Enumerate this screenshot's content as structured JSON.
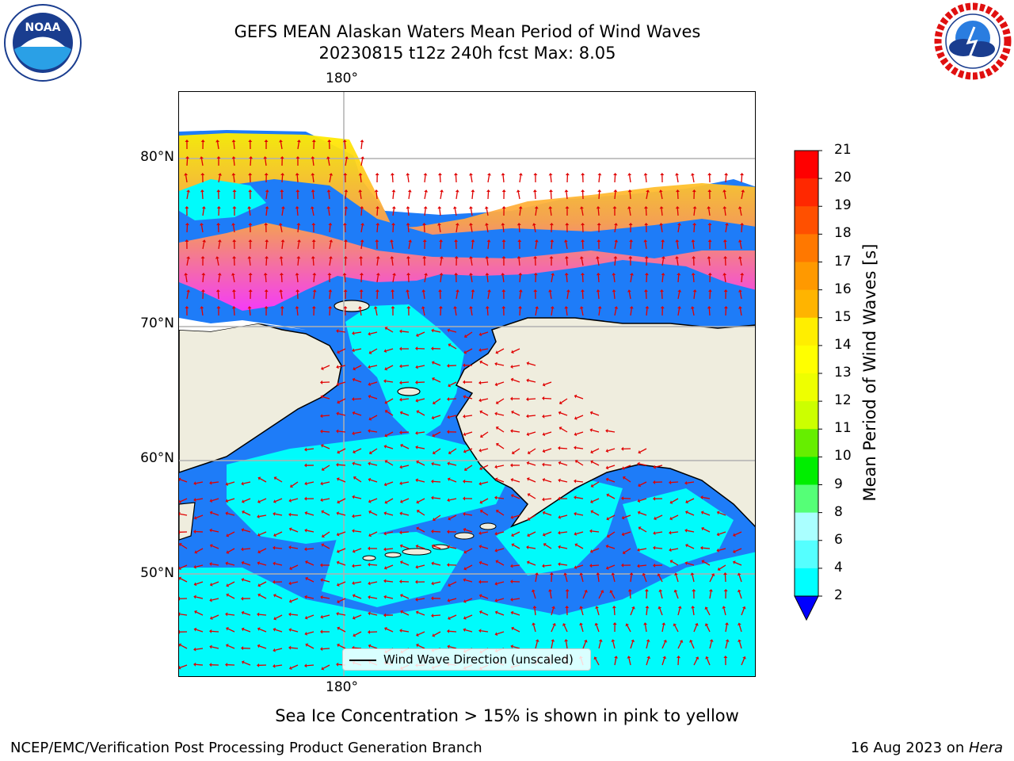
{
  "title": {
    "line1": "GEFS MEAN Alaskan Waters Mean Period of Wind Waves",
    "line2": "20230815 t12z 240h fcst   Max: 8.05"
  },
  "logos": {
    "left": {
      "text": "NOAA",
      "ring_text": "NATIONAL OCEANIC AND ATMOSPHERIC ADMINISTRATION · U.S. DEPARTMENT OF COMMERCE"
    },
    "right": {
      "ring_text": "NATIONAL WEATHER SERVICE"
    }
  },
  "map": {
    "lon_labels": [
      "180°",
      "180°"
    ],
    "lat_labels": [
      "80°N",
      "70°N",
      "60°N",
      "50°N"
    ],
    "colors": {
      "ocean_base": "#1e7cf8",
      "cyan": "#00fbfb",
      "land": "#efedde",
      "ice_pink": "#ff38f8",
      "ice_orange": "#ffa24a",
      "ice_yellow": "#ffee00",
      "arrow": "#e00000",
      "grid": "#b0b0b0"
    }
  },
  "legend": {
    "label": "Wind Wave Direction (unscaled)"
  },
  "colorbar": {
    "label": "Mean Period of Wind Waves [s]",
    "ticks": [
      "21",
      "20",
      "19",
      "18",
      "17",
      "16",
      "15",
      "14",
      "13",
      "12",
      "11",
      "10",
      "9",
      "8",
      "6",
      "4",
      "2"
    ],
    "colors": [
      "#ff0000",
      "#ff2800",
      "#ff5000",
      "#ff7800",
      "#ff9900",
      "#ffb400",
      "#ffee00",
      "#ffff00",
      "#eeff00",
      "#ccff00",
      "#66ee00",
      "#00ee00",
      "#55ff77",
      "#aaffff",
      "#55ffff",
      "#00ffff",
      "#1e7cf8"
    ],
    "extend_color": "#0000ff"
  },
  "caption": "Sea Ice Concentration > 15% is shown in pink to yellow",
  "footer": {
    "left": "NCEP/EMC/Verification Post Processing Product Generation Branch",
    "right_date": "16 Aug 2023 on ",
    "right_host": "Hera"
  }
}
